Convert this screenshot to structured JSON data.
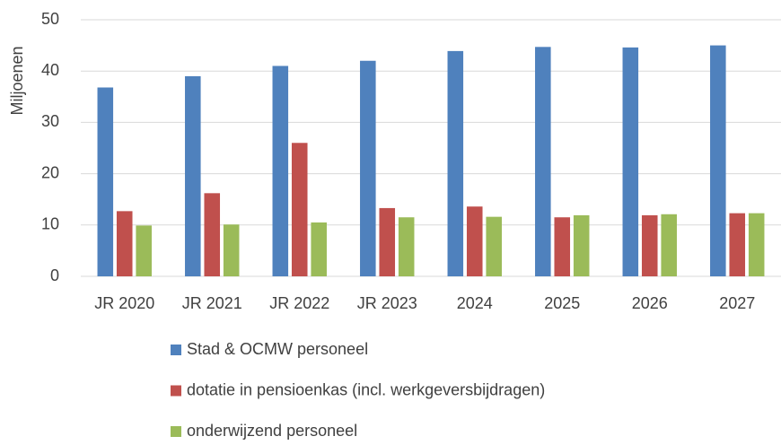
{
  "chart_data": {
    "type": "bar",
    "y_label": "Miljoenen",
    "categories": [
      "JR 2020",
      "JR 2021",
      "JR 2022",
      "JR 2023",
      "2024",
      "2025",
      "2026",
      "2027"
    ],
    "series": [
      {
        "name": "Stad & OCMW personeel",
        "color": "#4f81bd",
        "values": [
          36.8,
          39,
          41,
          42,
          43.9,
          44.7,
          44.6,
          45
        ]
      },
      {
        "name": "dotatie in pensioenkas (incl. werkgeversbijdragen)",
        "color": "#c0504d",
        "values": [
          12.7,
          16.2,
          26,
          13.3,
          13.6,
          11.5,
          11.9,
          12.3
        ]
      },
      {
        "name": "onderwijzend personeel",
        "color": "#9bbb59",
        "values": [
          9.9,
          10.1,
          10.5,
          11.5,
          11.6,
          11.9,
          12.1,
          12.3
        ]
      }
    ],
    "ylim": [
      0,
      50
    ],
    "yticks": [
      0,
      10,
      20,
      30,
      40,
      50
    ],
    "grid": true,
    "legend": "bottom"
  }
}
